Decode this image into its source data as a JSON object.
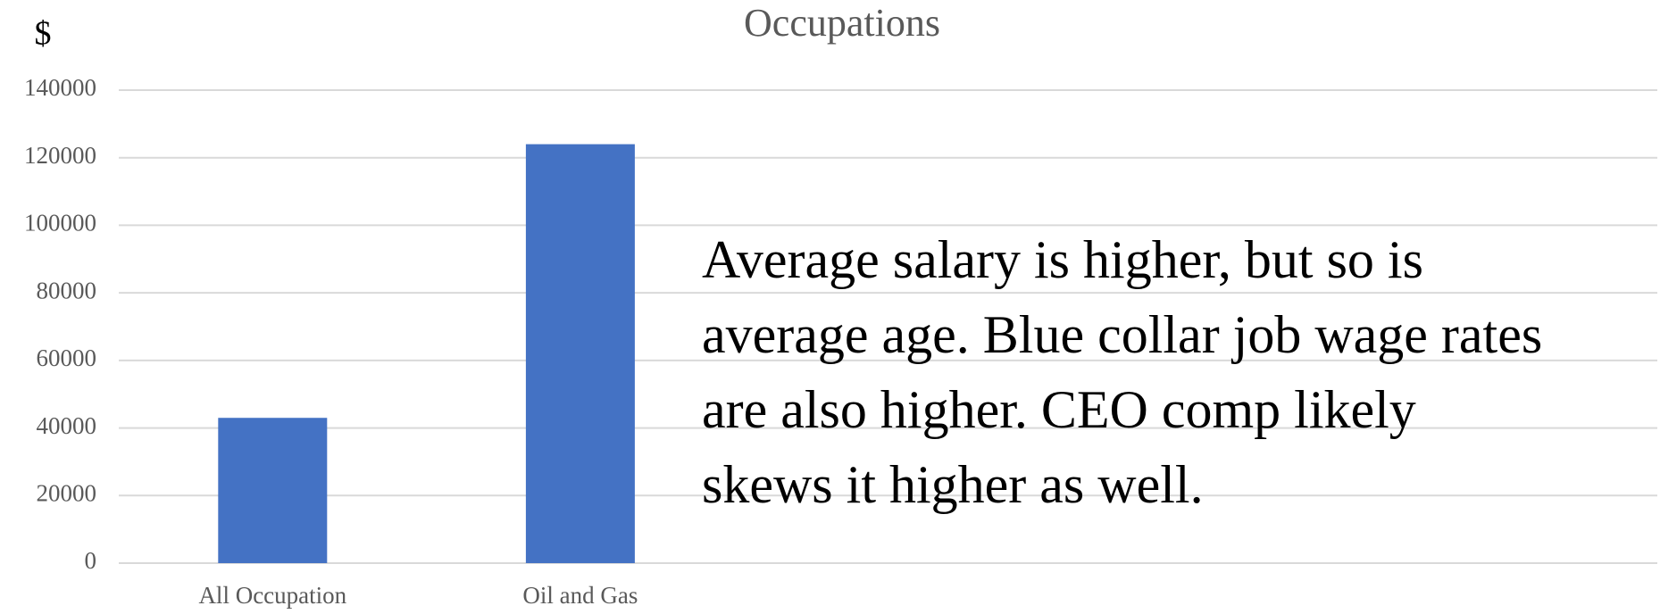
{
  "chart_data": {
    "type": "bar",
    "title": "Occupations",
    "y_label": "$",
    "categories": [
      "All Occupation",
      "Oil and Gas",
      null,
      null,
      null
    ],
    "values": [
      43000,
      124000,
      null,
      null,
      null
    ],
    "color": "#4472c4",
    "ylim": [
      0,
      140000
    ],
    "yticks": [
      0,
      20000,
      40000,
      60000,
      80000,
      100000,
      120000,
      140000
    ],
    "grid": true,
    "annotation": [
      "Average salary is higher, but so is",
      "average age.  Blue collar job wage rates",
      "are also higher.  CEO comp likely",
      "skews it higher as well."
    ]
  }
}
